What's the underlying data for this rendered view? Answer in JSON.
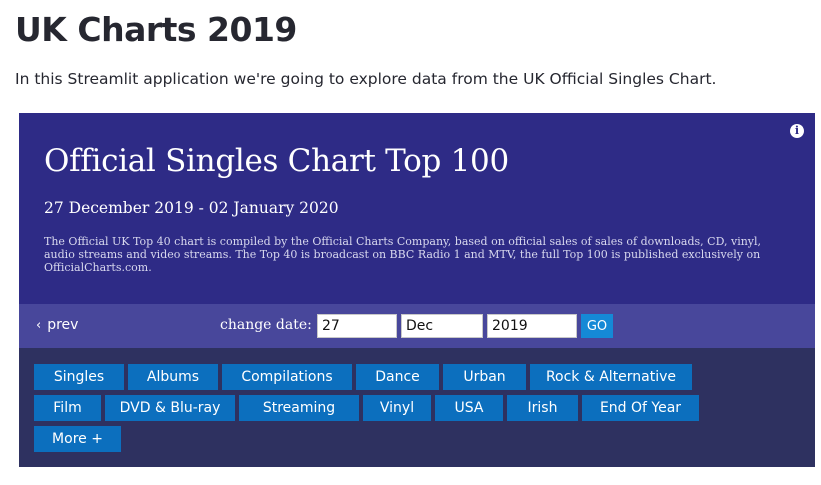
{
  "page": {
    "title": "UK Charts 2019",
    "intro": "In this Streamlit application we're going to explore data from the UK Official Singles Chart."
  },
  "embed": {
    "info_icon": "info-icon",
    "title": "Official Singles Chart Top 100",
    "dates": "27 December 2019 - 02 January 2020",
    "description": "The Official UK Top 40 chart is compiled by the Official Charts Company, based on official sales of sales of downloads, CD, vinyl, audio streams and video streams. The Top 40 is broadcast on BBC Radio 1 and MTV, the full Top 100 is published exclusively on OfficialCharts.com.",
    "date_bar": {
      "prev_label": "prev",
      "prev_icon": "chevron-left-icon",
      "change_label": "change date:",
      "day": "27",
      "month": "Dec",
      "year": "2019",
      "go_label": "GO"
    },
    "categories": [
      "Singles",
      "Albums",
      "Compilations",
      "Dance",
      "Urban",
      "Rock & Alternative",
      "Film",
      "DVD & Blu-ray",
      "Streaming",
      "Vinyl",
      "USA",
      "Irish",
      "End Of Year",
      "More +"
    ]
  },
  "colors": {
    "header_bg": "#2e2b86",
    "date_bar_bg": "#48479b",
    "nav_bg": "#2e3160",
    "button_bg": "#0c6fbe",
    "go_bg": "#1589d6"
  }
}
